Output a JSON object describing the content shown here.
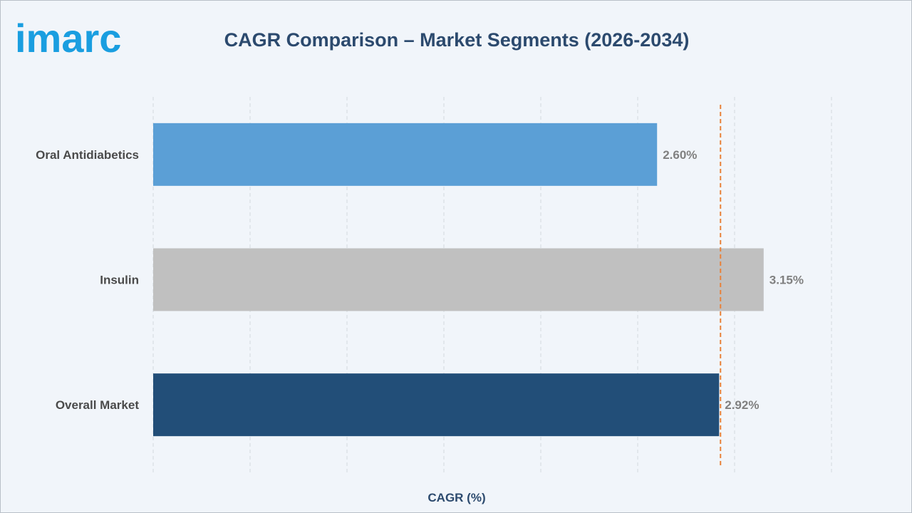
{
  "header": {
    "logo_text": "imarc",
    "title": "CAGR Comparison – Market Segments (2026-2034)"
  },
  "colors": {
    "brand": "#1a9ee0",
    "title": "#2c4a6e",
    "reference_line": "#e8823a"
  },
  "chart_data": {
    "type": "bar",
    "orientation": "horizontal",
    "title": "CAGR Comparison – Market Segments (2026-2034)",
    "xlabel": "CAGR (%)",
    "ylabel": "",
    "categories": [
      "Oral Antidiabetics",
      "Insulin",
      "Overall Market"
    ],
    "values": [
      2.6,
      3.15,
      2.92
    ],
    "value_labels": [
      "2.60%",
      "3.15%",
      "2.92%"
    ],
    "colors": [
      "#5b9fd6",
      "#c0c0c0",
      "#224e78"
    ],
    "reference_line": {
      "value": 2.92,
      "style": "dashed",
      "color": "#e8823a"
    },
    "xlim": [
      0,
      3.5
    ],
    "grid": "vertical-dashed",
    "legend": "none"
  }
}
